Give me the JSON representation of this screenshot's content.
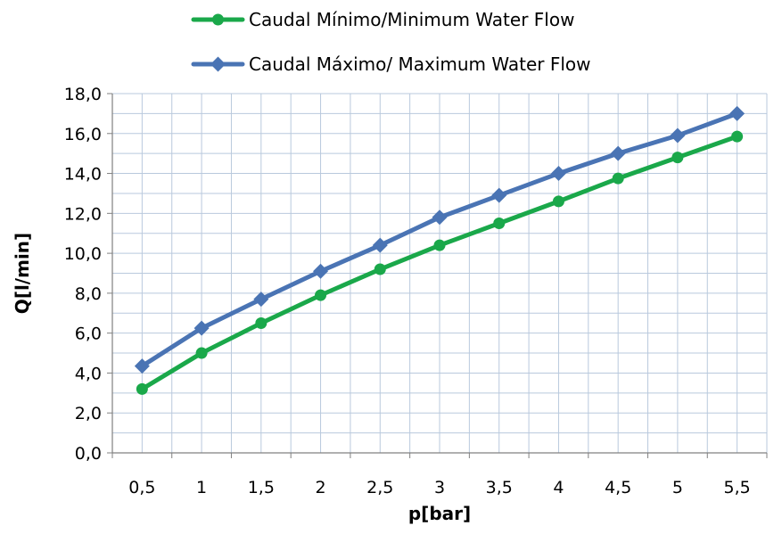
{
  "chart_data": {
    "type": "line",
    "x": [
      "0,5",
      "1",
      "1,5",
      "2",
      "2,5",
      "3",
      "3,5",
      "4",
      "4,5",
      "5",
      "5,5"
    ],
    "series": [
      {
        "name": "Caudal Mínimo/Minimum Water Flow",
        "color": "#1aa84a",
        "marker": "circle",
        "values": [
          3.2,
          5.0,
          6.5,
          7.9,
          9.2,
          10.4,
          11.5,
          12.6,
          13.75,
          14.8,
          15.85
        ]
      },
      {
        "name": "Caudal Máximo/ Maximum Water Flow",
        "color": "#4a74b4",
        "marker": "diamond",
        "values": [
          4.35,
          6.25,
          7.7,
          9.1,
          10.4,
          11.8,
          12.9,
          14.0,
          15.0,
          15.9,
          17.0
        ]
      }
    ],
    "xlabel": "p[bar]",
    "ylabel": "Q[l/min]",
    "ylim": [
      0,
      18
    ],
    "yticks": [
      "0,0",
      "2,0",
      "4,0",
      "6,0",
      "8,0",
      "10,0",
      "12,0",
      "14,0",
      "16,0",
      "18,0"
    ],
    "grid": true,
    "legend_position": "top"
  }
}
